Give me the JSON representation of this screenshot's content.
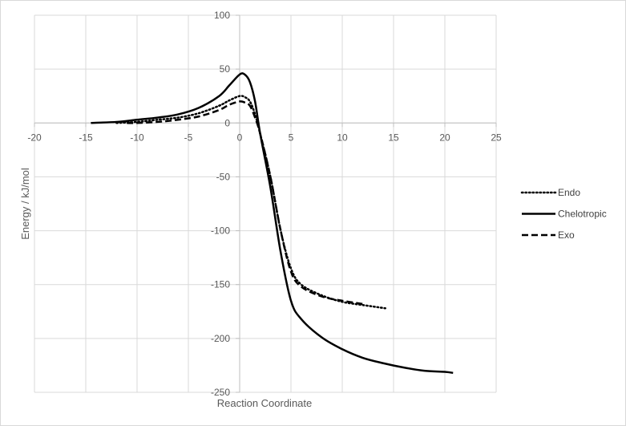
{
  "chart_data": {
    "type": "line",
    "title": "",
    "xlabel": "Reaction Coordinate",
    "ylabel": "Energy / kJ/mol",
    "xlim": [
      -20,
      25
    ],
    "ylim": [
      -250,
      100
    ],
    "xticks": [
      -20,
      -15,
      -10,
      -5,
      0,
      5,
      10,
      15,
      20,
      25
    ],
    "yticks": [
      100,
      50,
      0,
      -50,
      -100,
      -150,
      -200,
      -250
    ],
    "grid": true,
    "legend_position": "right",
    "series": [
      {
        "name": "Endo",
        "style": "dotted",
        "color": "#000000",
        "x": [
          -12,
          -10,
          -8,
          -6,
          -4,
          -2,
          -1,
          0,
          0.5,
          1,
          1.5,
          2,
          3,
          4,
          5,
          6,
          8,
          10,
          12,
          14.2
        ],
        "y": [
          0,
          1,
          3,
          5,
          9,
          16,
          21,
          25,
          24,
          20,
          8,
          -10,
          -50,
          -100,
          -135,
          -150,
          -160,
          -166,
          -169,
          -172
        ]
      },
      {
        "name": "Chelotropic",
        "style": "solid",
        "color": "#000000",
        "x": [
          -14.5,
          -12,
          -10,
          -8,
          -6,
          -4,
          -2,
          -1,
          0,
          0.5,
          1,
          1.5,
          2,
          3,
          4,
          5,
          6,
          8,
          10,
          12,
          14,
          16,
          18,
          20,
          20.8
        ],
        "y": [
          0,
          1,
          3,
          5,
          8,
          14,
          25,
          35,
          45,
          45,
          38,
          20,
          -10,
          -60,
          -120,
          -165,
          -182,
          -199,
          -210,
          -218,
          -223,
          -227,
          -230,
          -231,
          -232
        ]
      },
      {
        "name": "Exo",
        "style": "dashed",
        "color": "#000000",
        "x": [
          -11,
          -10,
          -8,
          -6,
          -4,
          -2,
          -1,
          0,
          0.5,
          1,
          1.5,
          2,
          3,
          4,
          5,
          6,
          8,
          10,
          12
        ],
        "y": [
          0,
          0,
          1,
          3,
          6,
          12,
          17,
          20,
          19,
          16,
          5,
          -10,
          -50,
          -100,
          -138,
          -152,
          -161,
          -165,
          -168
        ]
      }
    ]
  }
}
